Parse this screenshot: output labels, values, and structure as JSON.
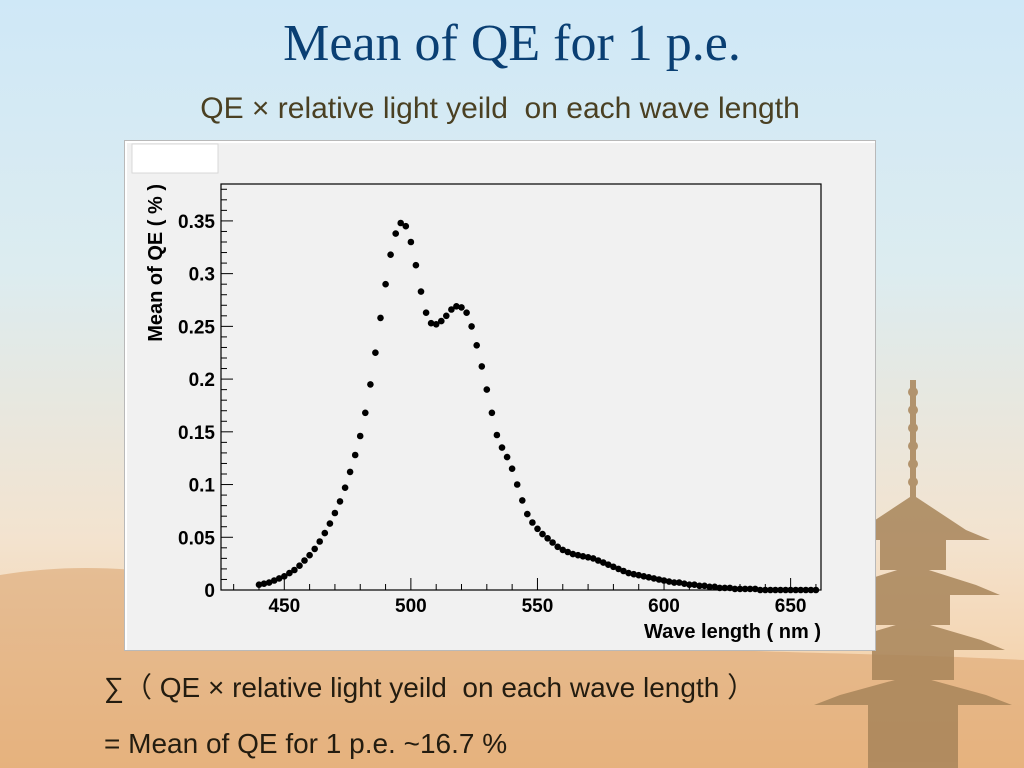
{
  "slide": {
    "title": "Mean of QE for 1 p.e.",
    "subtitle": "QE × relative light yeild  on each wave length",
    "sum_line": "∑（ QE × relative light yeild  on each wave length ）",
    "result_line": "= Mean of QE for 1 p.e. ~16.7 %"
  },
  "colors": {
    "title": "#0a3f73",
    "subtitle": "#4a4022",
    "panel": "#f1f1f1",
    "markers": "#000000"
  },
  "decor": [
    "pagoda-silhouette",
    "mountain-silhouette"
  ],
  "chart_data": {
    "type": "scatter",
    "xlabel": "Wave length ( nm )",
    "ylabel": "Mean of QE ( % )",
    "xlim": [
      425,
      662
    ],
    "ylim": [
      0,
      0.385
    ],
    "xticks": [
      "450",
      "500",
      "550",
      "600",
      "650"
    ],
    "yticks": [
      "0",
      "0.05",
      "0.1",
      "0.15",
      "0.2",
      "0.25",
      "0.3",
      "0.35"
    ],
    "grid": false,
    "legend": "none",
    "series": [
      {
        "x": [
          440,
          442,
          444,
          446,
          448,
          450,
          452,
          454,
          456,
          458,
          460,
          462,
          464,
          466,
          468,
          470,
          472,
          474,
          476,
          478,
          480,
          482,
          484,
          486,
          488,
          490,
          492,
          494,
          496,
          498,
          500,
          502,
          504,
          506,
          508,
          510,
          512,
          514,
          516,
          518,
          520,
          522,
          524,
          526,
          528,
          530,
          532,
          534,
          536,
          538,
          540,
          542,
          544,
          546,
          548,
          550,
          552,
          554,
          556,
          558,
          560,
          562,
          564,
          566,
          568,
          570,
          572,
          574,
          576,
          578,
          580,
          582,
          584,
          586,
          588,
          590,
          592,
          594,
          596,
          598,
          600,
          602,
          604,
          606,
          608,
          610,
          612,
          614,
          616,
          618,
          620,
          622,
          624,
          626,
          628,
          630,
          632,
          634,
          636,
          638,
          640,
          642,
          644,
          646,
          648,
          650,
          652,
          654,
          656,
          658,
          660
        ],
        "y": [
          0.005,
          0.006,
          0.007,
          0.009,
          0.011,
          0.013,
          0.016,
          0.019,
          0.023,
          0.028,
          0.033,
          0.039,
          0.046,
          0.054,
          0.063,
          0.073,
          0.084,
          0.097,
          0.112,
          0.128,
          0.146,
          0.168,
          0.195,
          0.225,
          0.258,
          0.29,
          0.318,
          0.338,
          0.348,
          0.345,
          0.33,
          0.308,
          0.283,
          0.263,
          0.253,
          0.252,
          0.255,
          0.26,
          0.266,
          0.269,
          0.268,
          0.263,
          0.25,
          0.232,
          0.212,
          0.19,
          0.168,
          0.147,
          0.135,
          0.126,
          0.115,
          0.1,
          0.085,
          0.072,
          0.064,
          0.058,
          0.053,
          0.049,
          0.045,
          0.041,
          0.038,
          0.036,
          0.034,
          0.033,
          0.032,
          0.031,
          0.03,
          0.028,
          0.026,
          0.024,
          0.022,
          0.02,
          0.018,
          0.016,
          0.015,
          0.014,
          0.013,
          0.012,
          0.011,
          0.01,
          0.009,
          0.008,
          0.007,
          0.007,
          0.006,
          0.005,
          0.005,
          0.004,
          0.004,
          0.003,
          0.003,
          0.002,
          0.002,
          0.002,
          0.001,
          0.001,
          0.001,
          0.001,
          0.001,
          0.0,
          0.0,
          0.0,
          0.0,
          0.0,
          0.0,
          0.0,
          0.0,
          0.0,
          0.0,
          0.0,
          0.0
        ]
      }
    ]
  }
}
